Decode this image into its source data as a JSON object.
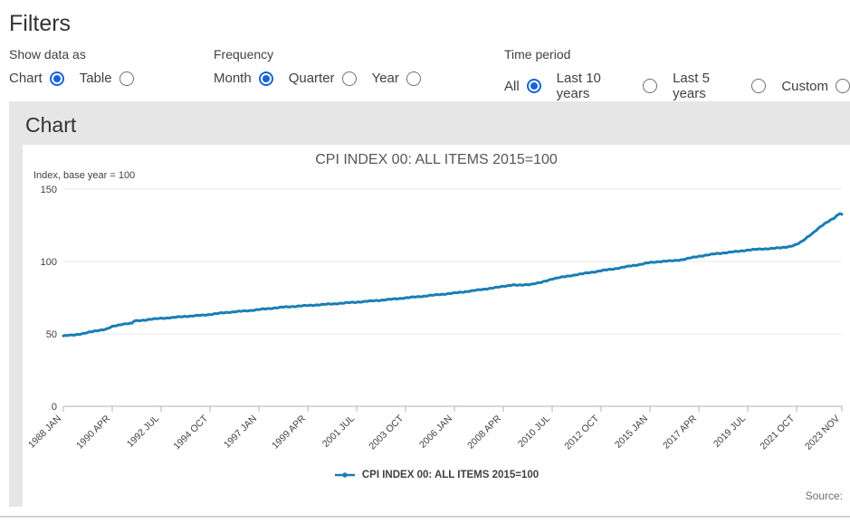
{
  "filters": {
    "title": "Filters",
    "show_data_as": {
      "label": "Show data as",
      "options": [
        {
          "label": "Chart",
          "selected": true
        },
        {
          "label": "Table",
          "selected": false
        }
      ]
    },
    "frequency": {
      "label": "Frequency",
      "options": [
        {
          "label": "Month",
          "selected": true
        },
        {
          "label": "Quarter",
          "selected": false
        },
        {
          "label": "Year",
          "selected": false
        }
      ]
    },
    "time_period": {
      "label": "Time period",
      "options": [
        {
          "label": "All",
          "selected": true
        },
        {
          "label": "Last 10 years",
          "selected": false
        },
        {
          "label": "Last 5 years",
          "selected": false
        },
        {
          "label": "Custom",
          "selected": false
        }
      ]
    }
  },
  "chart_section": {
    "heading": "Chart",
    "source_label": "Source:"
  },
  "colors": {
    "line": "#1a7db6",
    "radio_accent": "#1764d8",
    "grid": "#e8e8e8",
    "axis": "#b3b3b3",
    "tick_text": "#414042"
  },
  "chart_data": {
    "type": "line",
    "title": "CPI INDEX 00: ALL ITEMS 2015=100",
    "series_name": "CPI INDEX 00: ALL ITEMS 2015=100",
    "ylabel": "Index, base year = 100",
    "xlabel": "",
    "ylim": [
      0,
      150
    ],
    "yticks": [
      0,
      50,
      100,
      150
    ],
    "grid": true,
    "legend_position": "bottom-center",
    "frequency": "monthly",
    "x_start": "1988-01",
    "x_end": "2023-11",
    "xtick_labels": [
      "1988 JAN",
      "1990 APR",
      "1992 JUL",
      "1994 OCT",
      "1997 JAN",
      "1999 APR",
      "2001 JUL",
      "2003 OCT",
      "2006 JAN",
      "2008 APR",
      "2010 JUL",
      "2012 OCT",
      "2015 JAN",
      "2017 APR",
      "2019 JUL",
      "2021 OCT",
      "2023 NOV"
    ],
    "anchor_points": [
      [
        "1988-01",
        48.6
      ],
      [
        "1988-07",
        49.3
      ],
      [
        "1989-01",
        50.5
      ],
      [
        "1989-07",
        52.1
      ],
      [
        "1990-01",
        53.4
      ],
      [
        "1990-04",
        55.0
      ],
      [
        "1990-10",
        56.9
      ],
      [
        "1991-03",
        57.3
      ],
      [
        "1991-04",
        58.8
      ],
      [
        "1991-10",
        59.6
      ],
      [
        "1992-01",
        60.0
      ],
      [
        "1992-07",
        60.8
      ],
      [
        "1993-01",
        61.2
      ],
      [
        "1993-07",
        62.0
      ],
      [
        "1994-01",
        62.4
      ],
      [
        "1994-10",
        63.4
      ],
      [
        "1995-07",
        64.8
      ],
      [
        "1996-07",
        66.0
      ],
      [
        "1997-01",
        66.8
      ],
      [
        "1998-01",
        68.3
      ],
      [
        "1999-01",
        69.4
      ],
      [
        "2000-01",
        70.3
      ],
      [
        "2001-01",
        71.4
      ],
      [
        "2002-01",
        72.5
      ],
      [
        "2003-01",
        73.8
      ],
      [
        "2004-01",
        75.2
      ],
      [
        "2005-01",
        76.7
      ],
      [
        "2006-01",
        78.2
      ],
      [
        "2007-01",
        80.1
      ],
      [
        "2008-01",
        82.2
      ],
      [
        "2008-09",
        83.9
      ],
      [
        "2009-01",
        83.5
      ],
      [
        "2009-07",
        84.3
      ],
      [
        "2010-01",
        85.5
      ],
      [
        "2010-07",
        88.0
      ],
      [
        "2011-07",
        90.6
      ],
      [
        "2012-10",
        93.6
      ],
      [
        "2013-07",
        95.3
      ],
      [
        "2014-07",
        97.9
      ],
      [
        "2015-01",
        99.2
      ],
      [
        "2015-07",
        100.1
      ],
      [
        "2016-01",
        100.4
      ],
      [
        "2016-07",
        101.3
      ],
      [
        "2017-04",
        103.6
      ],
      [
        "2018-01",
        105.3
      ],
      [
        "2019-01",
        106.9
      ],
      [
        "2019-07",
        107.9
      ],
      [
        "2020-01",
        108.5
      ],
      [
        "2020-07",
        108.9
      ],
      [
        "2021-01",
        109.4
      ],
      [
        "2021-07",
        110.6
      ],
      [
        "2021-10",
        111.7
      ],
      [
        "2022-01",
        113.8
      ],
      [
        "2022-04",
        117.0
      ],
      [
        "2022-07",
        119.7
      ],
      [
        "2022-10",
        122.7
      ],
      [
        "2023-01",
        125.6
      ],
      [
        "2023-03",
        127.4
      ],
      [
        "2023-05",
        128.9
      ],
      [
        "2023-07",
        130.3
      ],
      [
        "2023-08",
        131.4
      ],
      [
        "2023-09",
        132.2
      ],
      [
        "2023-10",
        133.2
      ],
      [
        "2023-11",
        132.4
      ]
    ]
  }
}
